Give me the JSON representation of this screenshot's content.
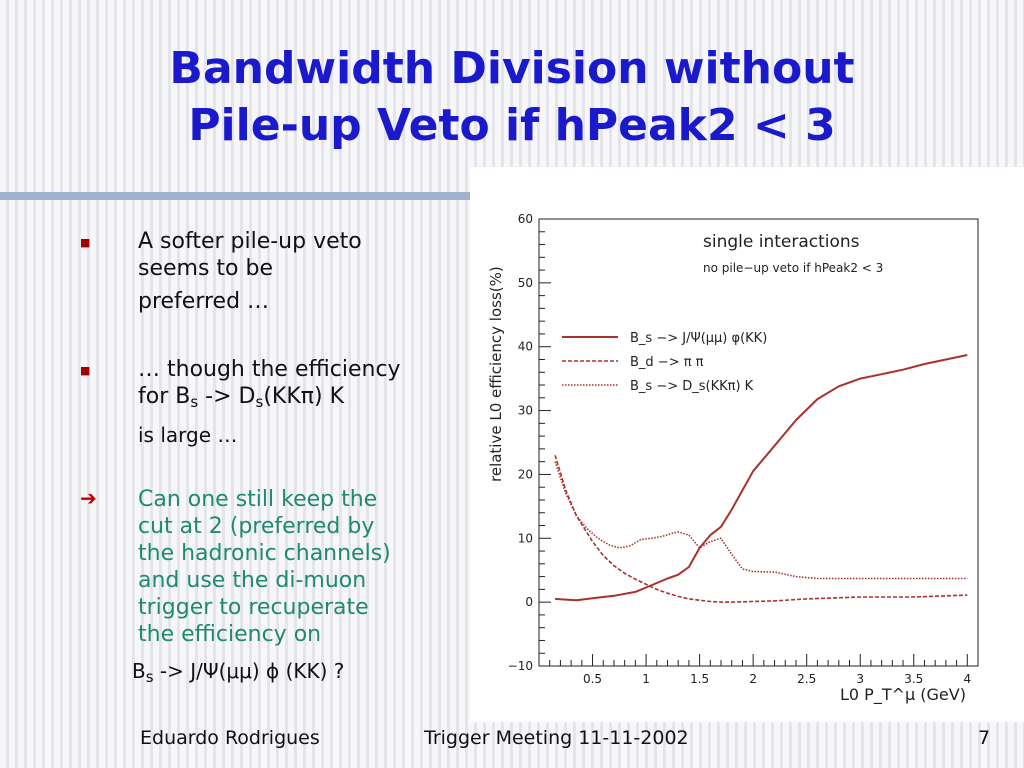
{
  "slide": {
    "title_line1": "Bandwidth Division without",
    "title_line2": "Pile-up Veto if hPeak2 < 3",
    "bullets": [
      {
        "marker": "■",
        "line1": "A softer pile-up veto",
        "line2": "seems to be",
        "line3": "preferred …"
      },
      {
        "marker": "■",
        "line1": "… though the efficiency",
        "line2_pre": "for B",
        "line2_sub1": "s",
        "line2_mid": " -> D",
        "line2_sub2": "s",
        "line2_post": "(KKπ) K",
        "line3": "is large …"
      },
      {
        "marker": "➔",
        "lines": [
          "Can one still keep the",
          "cut at 2 (preferred by",
          "the hadronic channels)",
          "and use the di-muon",
          "trigger to recuperate",
          "the efficiency on"
        ]
      }
    ],
    "last_line": {
      "pre": "B",
      "sub": "s",
      "post": " -> J/Ψ(μμ) ϕ (KK) ?"
    },
    "footer": {
      "author": "Eduardo Rodrigues",
      "meeting": "Trigger Meeting 11-11-2002",
      "page": "7"
    }
  },
  "chart_data": {
    "type": "line",
    "title": "single interactions",
    "subtitle": "no pile−up veto if hPeak2 < 3",
    "xlabel": "L0 P_T^μ (GeV)",
    "ylabel": "relative L0 efficiency loss(%)",
    "xlim": [
      0,
      4.1
    ],
    "ylim": [
      -10,
      60
    ],
    "x_ticks": [
      "0.5",
      "1",
      "1.5",
      "2",
      "2.5",
      "3",
      "3.5",
      "4"
    ],
    "x_tick_values": [
      0.5,
      1,
      1.5,
      2,
      2.5,
      3,
      3.5,
      4
    ],
    "y_ticks": [
      "−10",
      "0",
      "10",
      "20",
      "30",
      "40",
      "50",
      "60"
    ],
    "y_tick_values": [
      -10,
      0,
      10,
      20,
      30,
      40,
      50,
      60
    ],
    "color": "#a8322d",
    "series": [
      {
        "name": "B_s −> J/Ψ(μμ) φ(KK)",
        "style": "solid",
        "x": [
          0.15,
          0.25,
          0.35,
          0.5,
          0.7,
          0.9,
          1.0,
          1.1,
          1.2,
          1.3,
          1.4,
          1.5,
          1.6,
          1.7,
          1.8,
          1.9,
          2.0,
          2.2,
          2.4,
          2.6,
          2.8,
          3.0,
          3.2,
          3.4,
          3.6,
          3.8,
          4.0
        ],
        "y": [
          0.5,
          0.4,
          0.3,
          0.6,
          1.0,
          1.6,
          2.3,
          3.0,
          3.7,
          4.3,
          5.5,
          8.5,
          10.5,
          11.8,
          14.5,
          17.5,
          20.5,
          24.5,
          28.5,
          31.8,
          33.8,
          35.0,
          35.7,
          36.4,
          37.3,
          38.0,
          38.7
        ]
      },
      {
        "name": "B_d −> π π",
        "style": "dashed",
        "x": [
          0.15,
          0.25,
          0.35,
          0.5,
          0.6,
          0.7,
          0.8,
          0.9,
          1.0,
          1.1,
          1.2,
          1.3,
          1.4,
          1.5,
          1.6,
          1.7,
          1.8,
          2.0,
          2.2,
          2.5,
          3.0,
          3.5,
          4.0
        ],
        "y": [
          23.0,
          17.5,
          13.5,
          9.5,
          7.3,
          5.7,
          4.5,
          3.6,
          2.8,
          2.0,
          1.4,
          0.9,
          0.5,
          0.3,
          0.1,
          0.0,
          0.0,
          0.1,
          0.2,
          0.5,
          0.8,
          0.8,
          1.1
        ]
      },
      {
        "name": "B_s −> D_s(KKπ) K",
        "style": "dotted",
        "x": [
          0.15,
          0.25,
          0.35,
          0.45,
          0.55,
          0.65,
          0.75,
          0.85,
          0.95,
          1.05,
          1.15,
          1.25,
          1.3,
          1.4,
          1.5,
          1.6,
          1.7,
          1.8,
          1.9,
          2.0,
          2.2,
          2.4,
          2.6,
          3.0,
          3.5,
          4.0
        ],
        "y": [
          22.0,
          17.0,
          13.5,
          11.5,
          10.0,
          9.0,
          8.5,
          8.8,
          9.8,
          10.0,
          10.3,
          10.8,
          11.0,
          10.5,
          8.5,
          9.5,
          10.0,
          7.5,
          5.2,
          4.8,
          4.7,
          4.0,
          3.7,
          3.7,
          3.7,
          3.7
        ]
      }
    ],
    "legend_position": "center-right"
  }
}
